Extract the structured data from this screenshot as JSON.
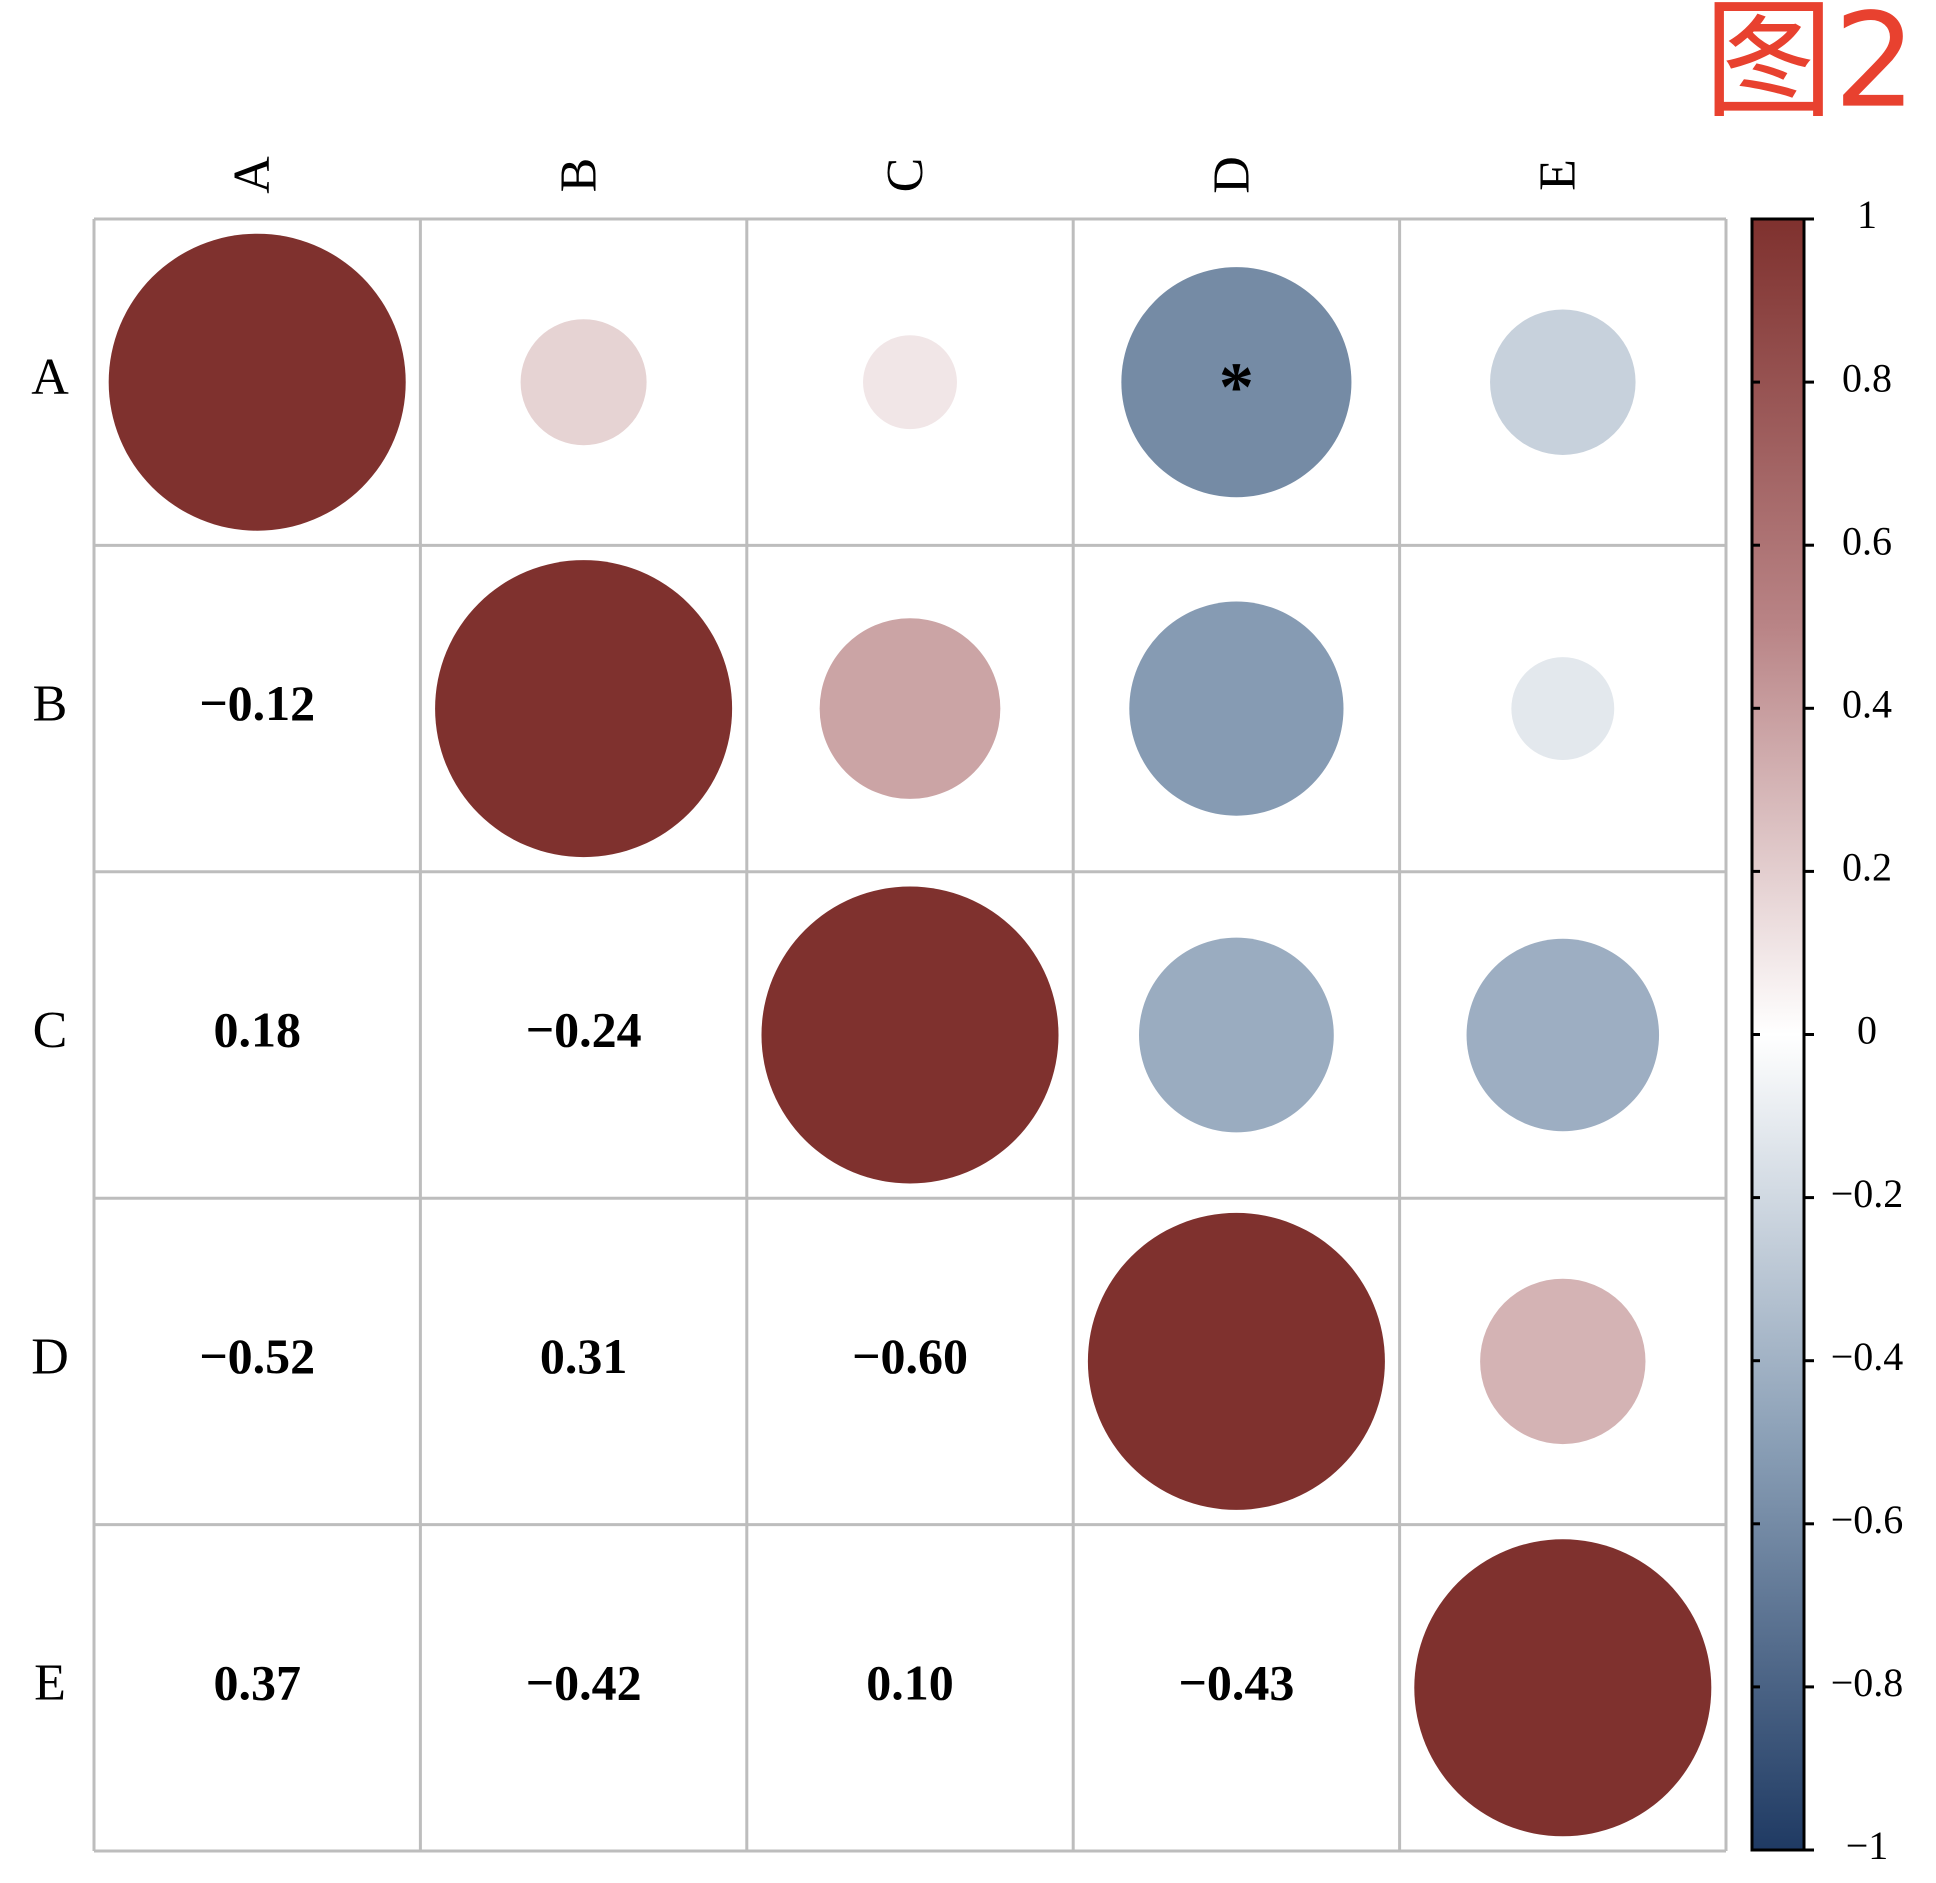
{
  "chart_data": {
    "type": "corrplot",
    "title": "图2",
    "variables": [
      "A",
      "B",
      "C",
      "D",
      "E"
    ],
    "matrix": [
      [
        1,
        0.18,
        0.1,
        -0.6,
        -0.24
      ],
      [
        -0.12,
        1,
        0.37,
        -0.52,
        -0.12
      ],
      [
        0.18,
        -0.24,
        1,
        -0.43,
        -0.42
      ],
      [
        -0.52,
        0.31,
        -0.6,
        1,
        0.31
      ],
      [
        0.37,
        -0.42,
        0.1,
        -0.43,
        1
      ]
    ],
    "value_labels": [
      [
        null,
        null,
        null,
        null,
        null
      ],
      [
        "−0.12",
        null,
        null,
        null,
        null
      ],
      [
        "0.18",
        "−0.24",
        null,
        null,
        null
      ],
      [
        "−0.52",
        "0.31",
        "−0.60",
        null,
        null
      ],
      [
        "0.37",
        "−0.42",
        "0.10",
        "−0.43",
        null
      ]
    ],
    "sig_labels": [
      [
        null,
        null,
        null,
        "*",
        null
      ],
      [
        null,
        null,
        null,
        null,
        null
      ],
      [
        null,
        null,
        null,
        null,
        null
      ],
      [
        null,
        null,
        null,
        null,
        null
      ],
      [
        null,
        null,
        null,
        null,
        null
      ]
    ],
    "colormap": [
      "#1f3a63",
      "#8a9fb6",
      "#ffffff",
      "#b98486",
      "#7f312e"
    ],
    "clim": [
      -1,
      1
    ],
    "cticks": [
      1,
      0.8,
      0.6,
      0.4,
      0.2,
      0,
      {
        "value": -0.2,
        "label": "−0.2"
      },
      {
        "value": -0.4,
        "label": "−0.4"
      },
      {
        "value": -0.6,
        "label": "−0.6"
      },
      {
        "value": -0.8,
        "label": "−0.8"
      },
      {
        "value": -1,
        "label": "−1"
      }
    ],
    "title_color": "#e8412f"
  }
}
